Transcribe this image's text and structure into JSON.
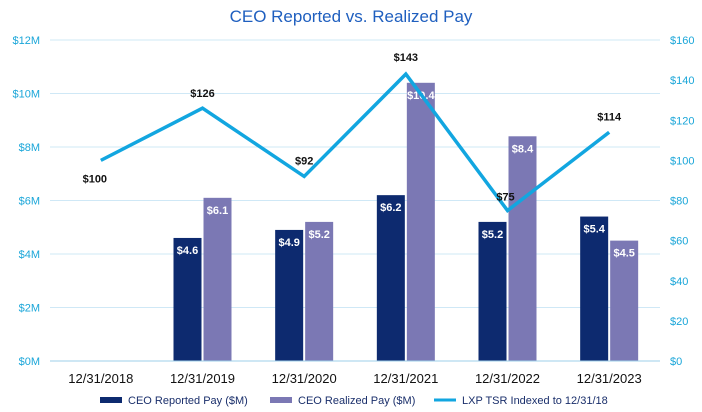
{
  "chart_data": {
    "type": "bar",
    "title": "CEO Reported vs. Realized Pay",
    "categories": [
      "12/31/2018",
      "12/31/2019",
      "12/31/2020",
      "12/31/2021",
      "12/31/2022",
      "12/31/2023"
    ],
    "series": [
      {
        "name": "CEO Reported Pay ($M)",
        "type": "bar",
        "axis": "left",
        "color": "#0d2a6f",
        "values": [
          null,
          4.6,
          4.9,
          6.2,
          5.2,
          5.4
        ],
        "labels": [
          "",
          "$4.6",
          "$4.9",
          "$6.2",
          "$5.2",
          "$5.4"
        ]
      },
      {
        "name": "CEO Realized Pay ($M)",
        "type": "bar",
        "axis": "left",
        "color": "#7b78b4",
        "values": [
          null,
          6.1,
          5.2,
          10.4,
          8.4,
          4.5
        ],
        "labels": [
          "",
          "$6.1",
          "$5.2",
          "$10.4",
          "$8.4",
          "$4.5"
        ]
      },
      {
        "name": "LXP TSR Indexed to 12/31/18",
        "type": "line",
        "axis": "right",
        "color": "#12a6e0",
        "values": [
          100,
          126,
          92,
          143,
          75,
          114
        ],
        "labels": [
          "$100",
          "$126",
          "$92",
          "$143",
          "$75",
          "$114"
        ]
      }
    ],
    "y_left": {
      "min": 0,
      "max": 12,
      "step": 2,
      "ticks": [
        "$0M",
        "$2M",
        "$4M",
        "$6M",
        "$8M",
        "$10M",
        "$12M"
      ]
    },
    "y_right": {
      "min": 0,
      "max": 160,
      "step": 20,
      "ticks": [
        "$0",
        "$20",
        "$40",
        "$60",
        "$80",
        "$100",
        "$120",
        "$140",
        "$160"
      ]
    },
    "grid": true,
    "legend_position": "bottom"
  }
}
